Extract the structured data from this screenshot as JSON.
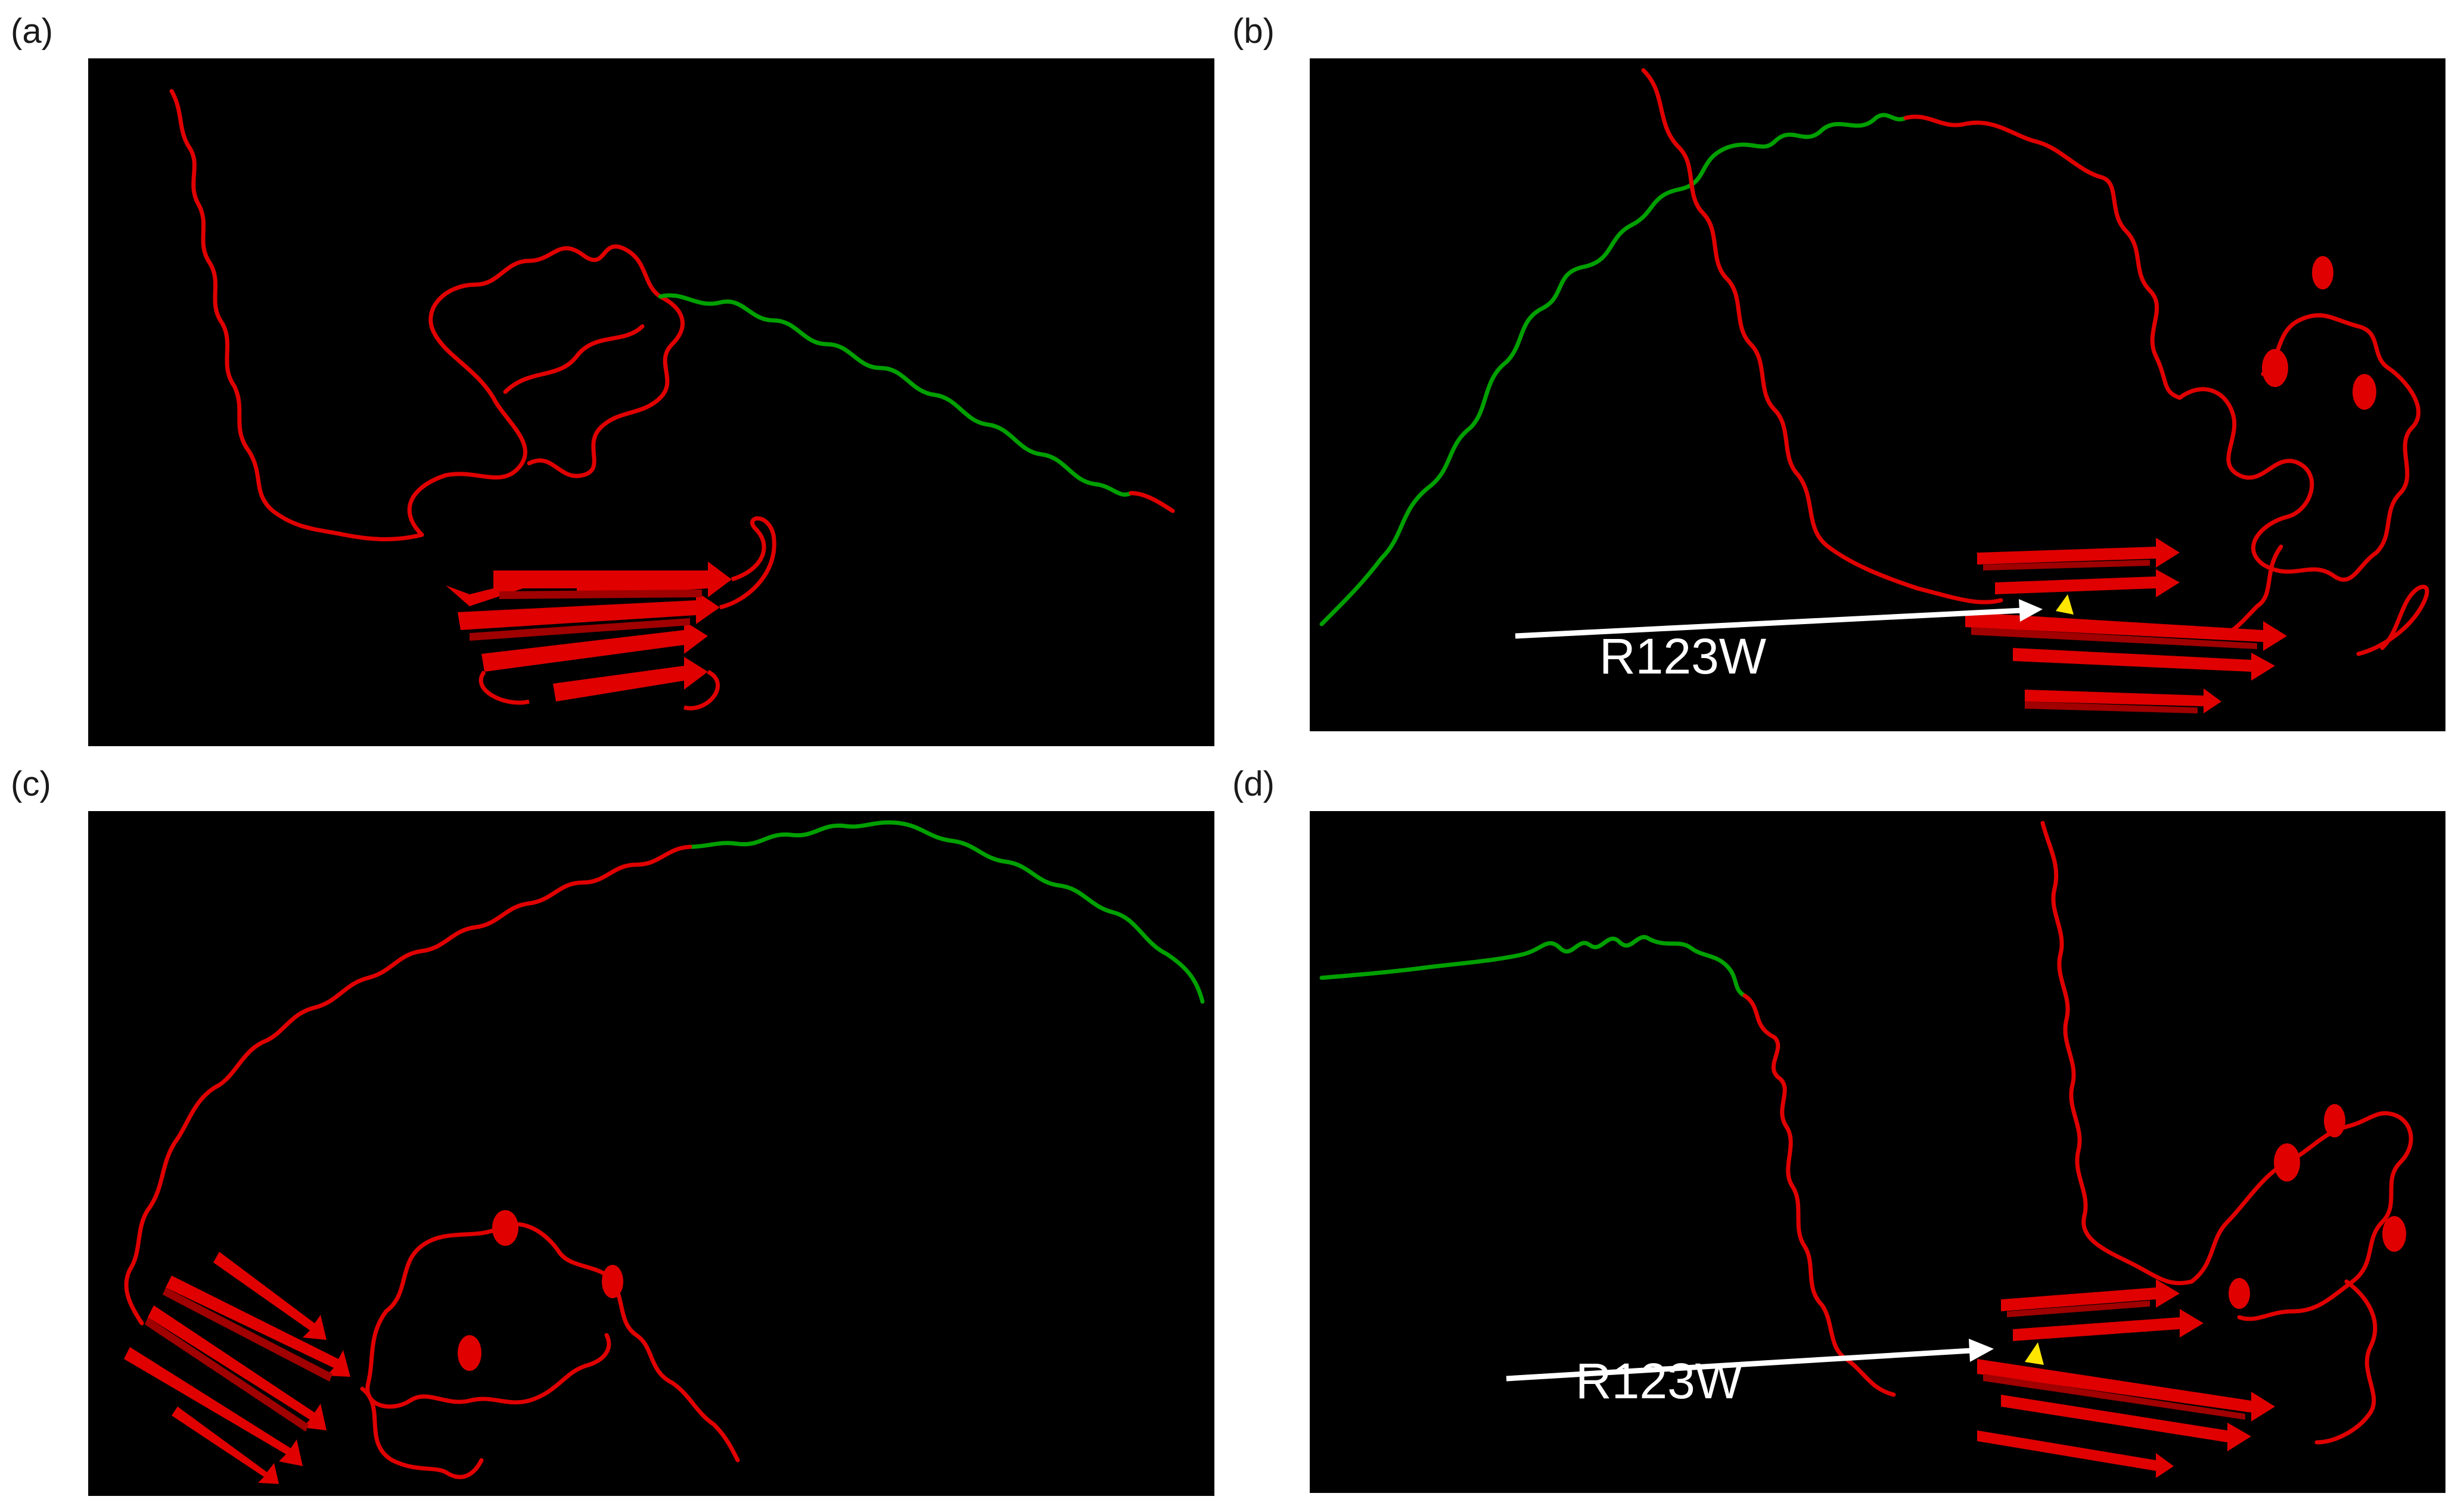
{
  "figure": {
    "panels": [
      {
        "label": "(a)",
        "annotation": "",
        "colors": {
          "structure": "#e00000",
          "tail": "#00a000"
        }
      },
      {
        "label": "(b)",
        "annotation": "R123W",
        "colors": {
          "structure": "#e00000",
          "tail": "#00a000",
          "marker": "#ffe600",
          "arrow": "#ffffff"
        }
      },
      {
        "label": "(c)",
        "annotation": "",
        "colors": {
          "structure": "#e00000",
          "tail": "#00a000"
        }
      },
      {
        "label": "(d)",
        "annotation": "R123W",
        "colors": {
          "structure": "#e00000",
          "tail": "#00a000",
          "marker": "#ffe600",
          "arrow": "#ffffff"
        }
      }
    ]
  }
}
